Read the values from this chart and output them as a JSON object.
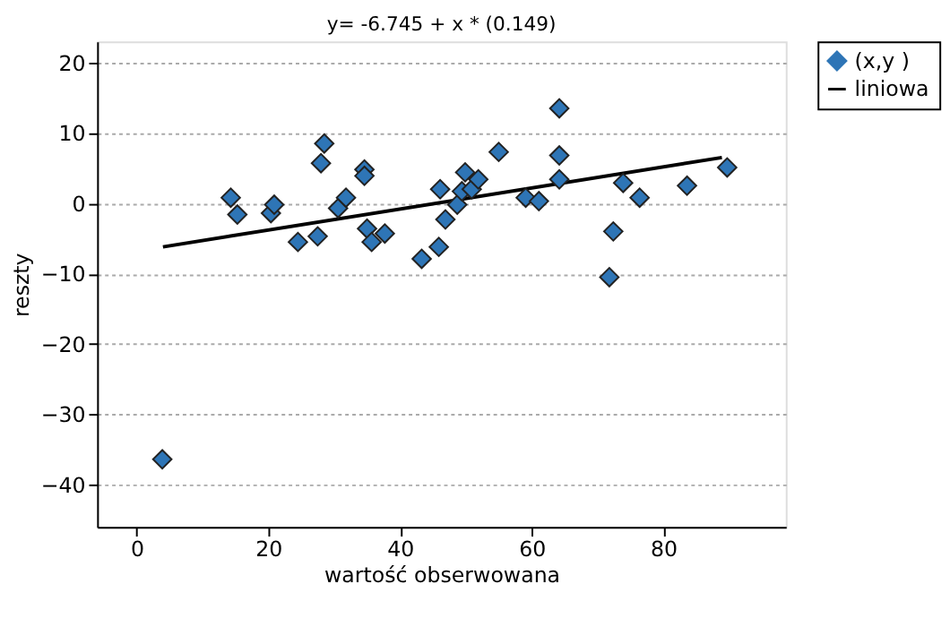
{
  "chart_data": {
    "type": "scatter",
    "title": "y= -6.745 + x * (0.149)",
    "xlabel": "wartość obserwowana",
    "ylabel": "reszty",
    "xlim": [
      -6,
      98.6
    ],
    "ylim": [
      -46,
      23
    ],
    "xticks": [
      0,
      20,
      40,
      60,
      80
    ],
    "yticks": [
      -40,
      -30,
      -20,
      -10,
      0,
      10,
      20
    ],
    "grid": "y",
    "legend": "top right",
    "series": [
      {
        "name": "(x,y )",
        "marker": "diamond",
        "color": "#2e75b6",
        "x": [
          3.9,
          14.3,
          15.3,
          20.4,
          20.9,
          24.5,
          27.5,
          28,
          28.5,
          30.6,
          31.8,
          34.6,
          34.6,
          35,
          35.7,
          37.7,
          43.3,
          45.9,
          46.1,
          46.9,
          48.7,
          49.4,
          49.9,
          50.9,
          51.9,
          55,
          59.1,
          61.1,
          64.2,
          64.2,
          64.2,
          71.8,
          72.4,
          73.9,
          76.4,
          83.6,
          89.7
        ],
        "values": [
          -36.4,
          0.8,
          -1.6,
          -1.4,
          -0.2,
          -5.5,
          -4.7,
          5.7,
          8.5,
          -0.7,
          0.8,
          4.8,
          3.9,
          -3.6,
          -5.5,
          -4.3,
          -7.9,
          -6.2,
          2.0,
          -2.3,
          -0.2,
          1.7,
          4.4,
          2.0,
          3.4,
          7.3,
          0.8,
          0.3,
          13.5,
          6.8,
          3.4,
          -10.5,
          -4.0,
          2.9,
          0.8,
          2.5,
          5.1
        ]
      },
      {
        "name": "liniowa",
        "type": "line",
        "marker": "none",
        "line_style": "solid",
        "color": "#000000",
        "x": [
          4,
          88.9
        ],
        "values": [
          -6.2,
          6.5
        ]
      }
    ]
  }
}
